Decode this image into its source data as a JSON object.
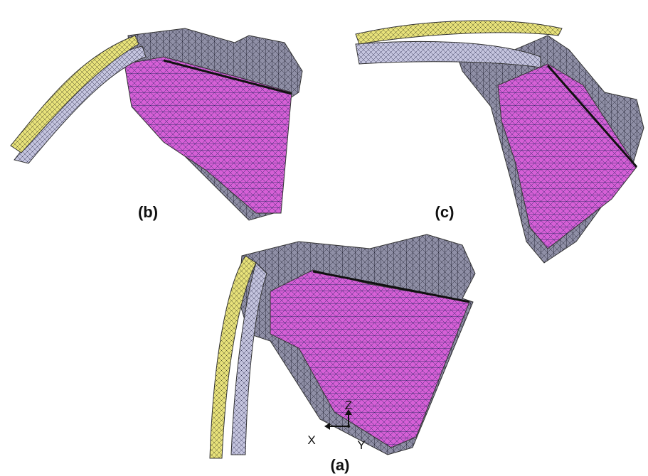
{
  "panels": [
    {
      "label": "(b)"
    },
    {
      "label": "(c)"
    },
    {
      "label": "(a)"
    }
  ],
  "axes": {
    "z": "Z",
    "x": "X",
    "y": "Y"
  }
}
